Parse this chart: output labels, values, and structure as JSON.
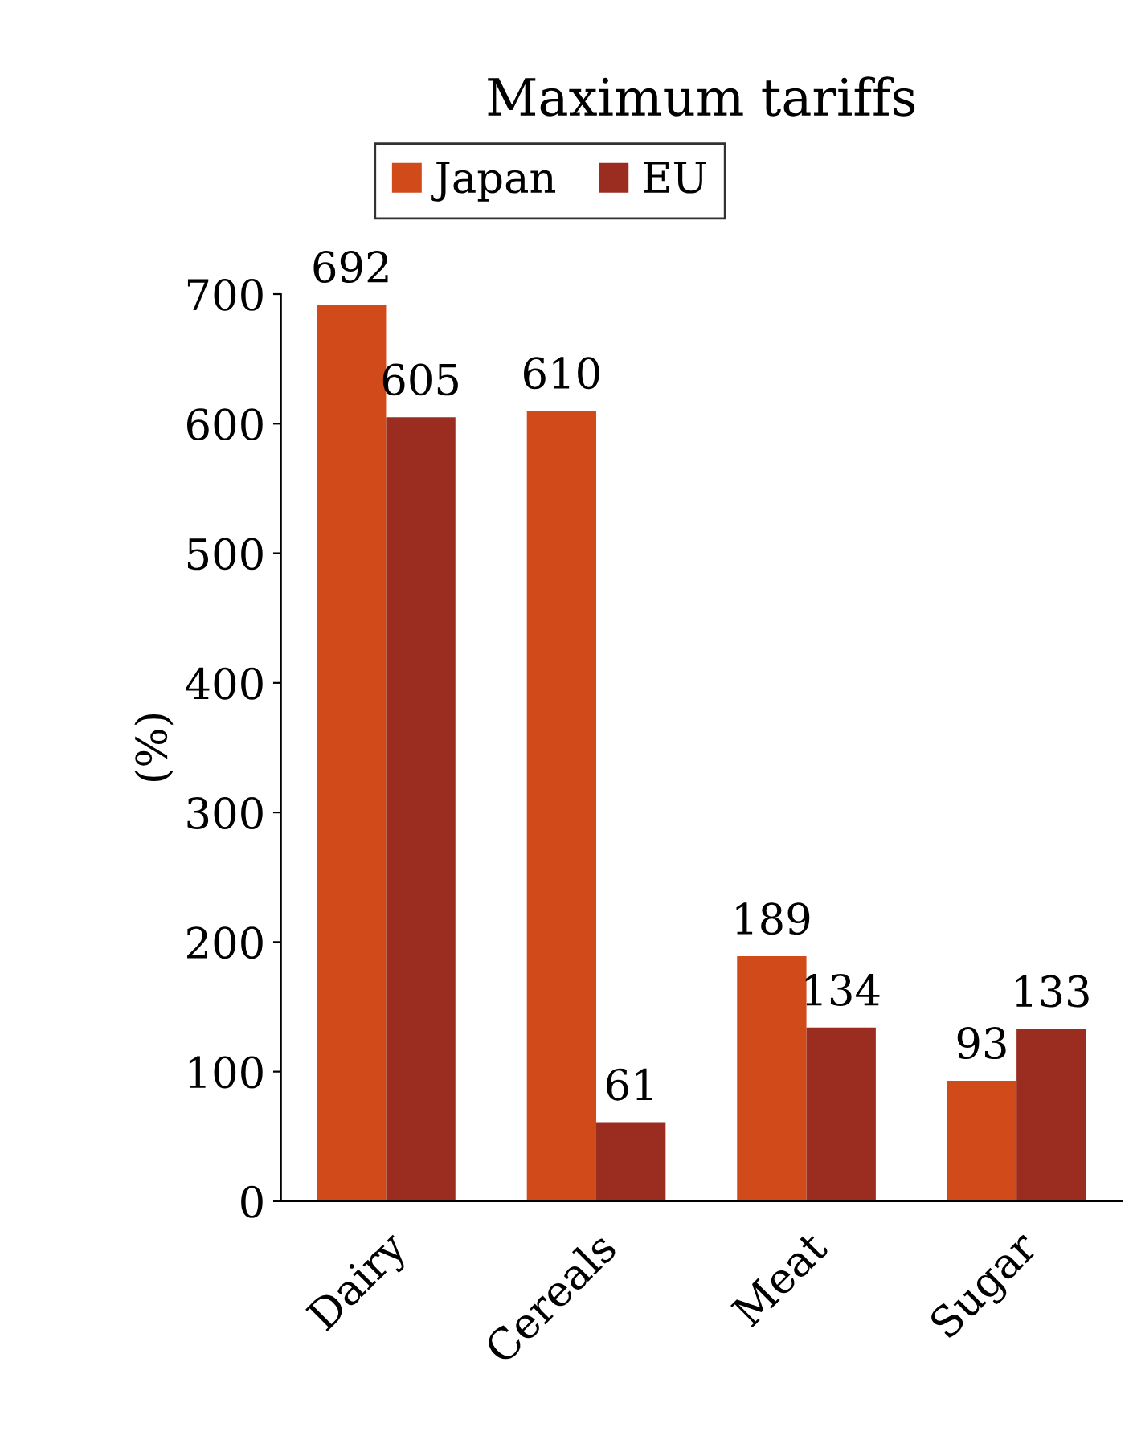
{
  "chart_data": {
    "type": "bar",
    "title": "Maximum tariffs",
    "ylabel": "(%)",
    "categories": [
      "Dairy",
      "Cereals",
      "Meat",
      "Sugar"
    ],
    "series": [
      {
        "name": "Japan",
        "color": "#d14a1a",
        "values": [
          692,
          610,
          189,
          93
        ]
      },
      {
        "name": "EU",
        "color": "#9b2d20",
        "values": [
          605,
          61,
          134,
          133
        ]
      }
    ],
    "ylim": [
      0,
      700
    ],
    "yticks": [
      0,
      100,
      200,
      300,
      400,
      500,
      600,
      700
    ],
    "grid": false,
    "legend": "top",
    "data_labels": true
  }
}
